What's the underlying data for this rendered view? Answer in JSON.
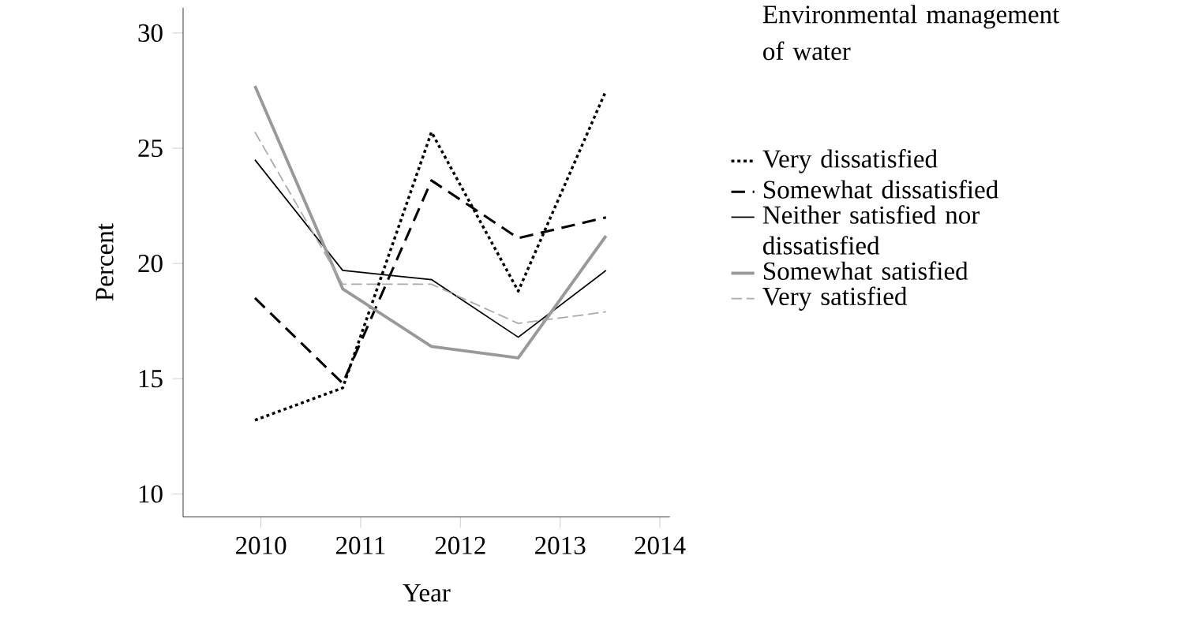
{
  "chart_data": {
    "type": "line",
    "xlabel": "Year",
    "ylabel": "Percent",
    "legend_title": "Environmental management of water",
    "x": [
      2009.94,
      2010.82,
      2011.71,
      2012.58,
      2013.46
    ],
    "series": [
      {
        "name": "Very dissatisfied",
        "color": "#000000",
        "line_style": "dotted",
        "values": [
          13.2,
          14.6,
          25.7,
          18.8,
          27.5
        ]
      },
      {
        "name": "Somewhat dissatisfied",
        "color": "#000000",
        "line_style": "dashed",
        "values": [
          18.5,
          14.8,
          23.6,
          21.1,
          22.0
        ]
      },
      {
        "name": "Neither satisfied nor dissatisfied",
        "color": "#000000",
        "line_style": "solid",
        "values": [
          24.5,
          19.7,
          19.3,
          16.8,
          19.7
        ]
      },
      {
        "name": "Somewhat satisfied",
        "color": "#999999",
        "line_style": "solid",
        "values": [
          27.7,
          18.9,
          16.4,
          15.9,
          21.2
        ]
      },
      {
        "name": "Very satisfied",
        "color": "#aaaaaa",
        "line_style": "dashed",
        "values": [
          25.7,
          19.1,
          19.1,
          17.4,
          17.9
        ]
      }
    ],
    "xlim": [
      2009.22,
      2014.1
    ],
    "ylim": [
      9.0,
      31.1
    ],
    "xticks": [
      2010,
      2011,
      2012,
      2013,
      2014
    ],
    "yticks": [
      10,
      15,
      20,
      25,
      30
    ],
    "grid": false,
    "legend": "right",
    "marker": "none"
  }
}
